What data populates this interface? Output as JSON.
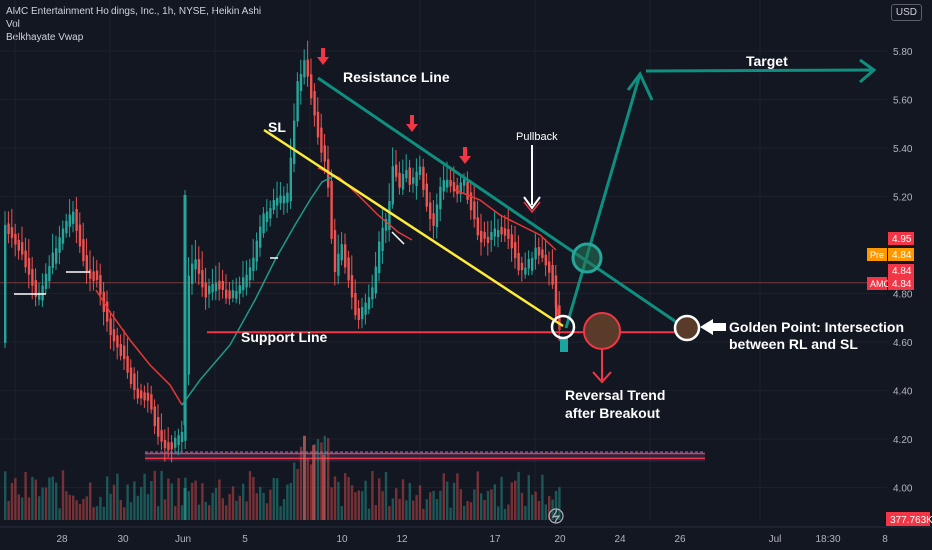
{
  "header": {
    "symbol_line": "AMC Entertainment Holdings, Inc., 1h, NYSE, Heikin Ashi",
    "indicator_1": "Vol",
    "indicator_2": "Belkhayate Vwap",
    "currency": "USD"
  },
  "chart_data": {
    "type": "candlestick",
    "yaxis_ticks": [
      5.8,
      5.6,
      5.4,
      5.2,
      4.8,
      4.6,
      4.4,
      4.2,
      4.0
    ],
    "ylim": [
      3.87,
      5.95
    ],
    "xaxis_ticks": [
      "28",
      "30",
      "Jun",
      "5",
      "10",
      "12",
      "17",
      "20",
      "24",
      "26",
      "Jul",
      "18:30",
      "8"
    ],
    "price_badges": [
      {
        "label": "",
        "value": "4.95",
        "color": "#f23645"
      },
      {
        "label": "Pre",
        "value": "4.84",
        "color": "#ff9800"
      },
      {
        "label": "",
        "value": "4.84",
        "color": "#f23645"
      },
      {
        "label": "AMC",
        "value": "4.84",
        "color": "#f23645"
      }
    ],
    "volume_badge": "377.763K",
    "annotations": {
      "resistance_line": "Resistance Line",
      "sl": "SL",
      "pullback": "Pullback",
      "target": "Target",
      "support_line": "Support Line",
      "golden_point_1": "Golden Point: Intersection",
      "golden_point_2": "between RL and SL",
      "reversal_1": "Reversal Trend",
      "reversal_2": "after Breakout"
    },
    "levels": {
      "support": 4.64,
      "current": 4.84,
      "base_top": 4.14,
      "base_bottom": 4.12
    },
    "colors": {
      "up": "#26a69a",
      "down": "#ef5350",
      "annotation_green": "#0f8f7f",
      "support": "#f23645",
      "sl": "#ffeb3b",
      "vwap": "#f23645"
    }
  }
}
